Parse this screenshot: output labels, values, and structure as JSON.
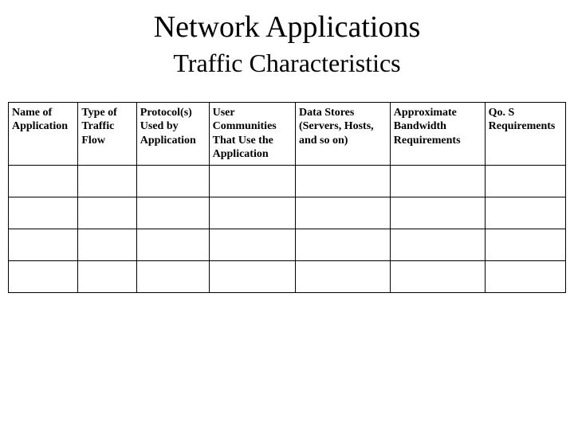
{
  "title": {
    "main": "Network Applications",
    "sub": "Traffic Characteristics"
  },
  "table": {
    "type": "table",
    "background_color": "#ffffff",
    "border_color": "#000000",
    "header_fontsize": 14,
    "header_fontweight": "bold",
    "num_data_rows": 4,
    "columns": [
      {
        "label": "Name of Application",
        "width_pct": 12.5
      },
      {
        "label": "Type of Traffic Flow",
        "width_pct": 10.5
      },
      {
        "label": "Protocol(s) Used by Application",
        "width_pct": 13
      },
      {
        "label": "User Communities That Use the Application",
        "width_pct": 15.5
      },
      {
        "label": "Data Stores (Servers, Hosts, and so on)",
        "width_pct": 17
      },
      {
        "label": "Approximate Bandwidth Requirements",
        "width_pct": 17
      },
      {
        "label": "Qo. S Requirements",
        "width_pct": 14.5
      }
    ],
    "rows": [
      [
        "",
        "",
        "",
        "",
        "",
        "",
        ""
      ],
      [
        "",
        "",
        "",
        "",
        "",
        "",
        ""
      ],
      [
        "",
        "",
        "",
        "",
        "",
        "",
        ""
      ],
      [
        "",
        "",
        "",
        "",
        "",
        "",
        ""
      ]
    ]
  },
  "style": {
    "page_bg": "#ffffff",
    "text_color": "#000000",
    "title_fontsize": 38,
    "subtitle_fontsize": 32,
    "font_family": "Times New Roman"
  }
}
